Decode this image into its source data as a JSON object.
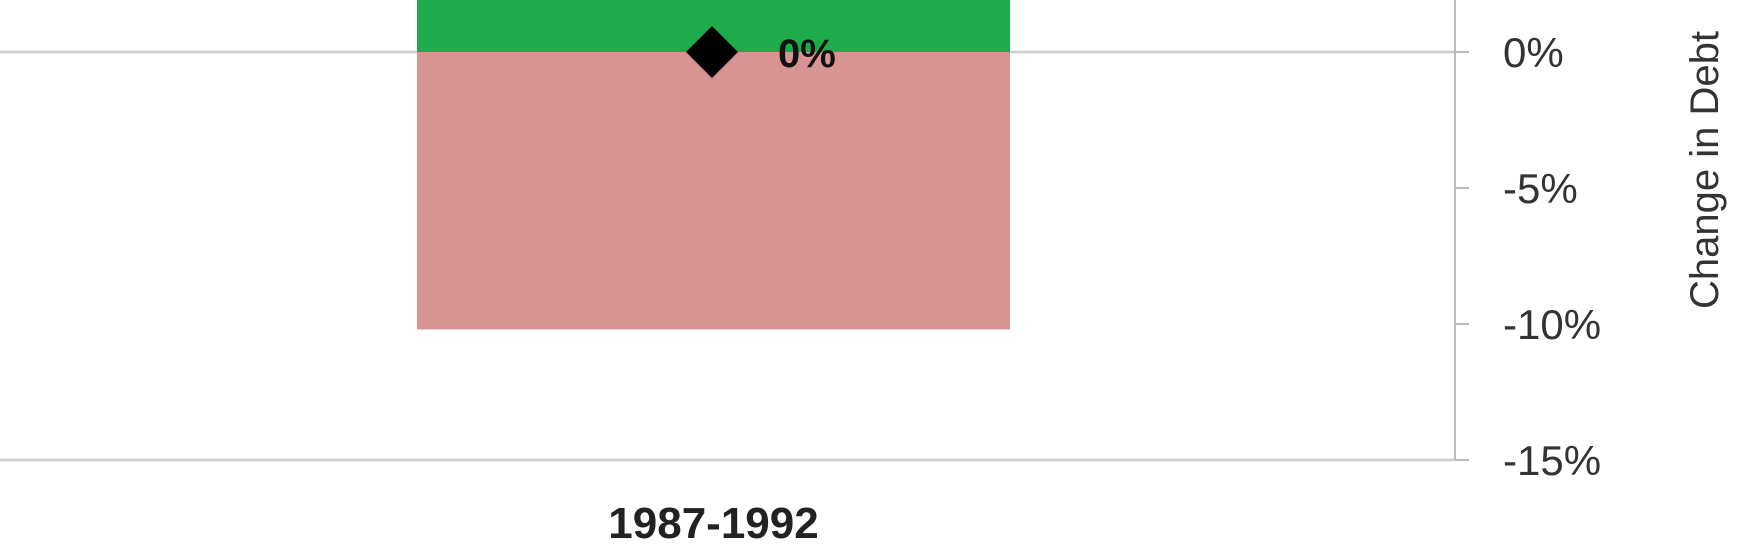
{
  "colors": {
    "positive_bar": "#1faa4b",
    "negative_bar": "#d79492",
    "marker": "#000000",
    "gridline": "#cccccc",
    "axis": "#bbbbbb"
  },
  "chart_data": {
    "type": "bar",
    "stacked": true,
    "categories": [
      "1987-1992"
    ],
    "series": [
      {
        "values": [
          2.5
        ],
        "color": "#1faa4b"
      },
      {
        "values": [
          -10.2
        ],
        "color": "#d79492"
      }
    ],
    "markers": {
      "shape": "diamond",
      "values": [
        0
      ],
      "data_labels": [
        "0%"
      ]
    },
    "y_axis": {
      "label": "Change in Debt",
      "position": "right",
      "ylim": [
        -15,
        2
      ],
      "ticks": [
        0,
        -5,
        -10,
        -15
      ],
      "tick_labels": [
        "0%",
        "-5%",
        "-10%",
        "-15%"
      ]
    },
    "grid": true
  }
}
